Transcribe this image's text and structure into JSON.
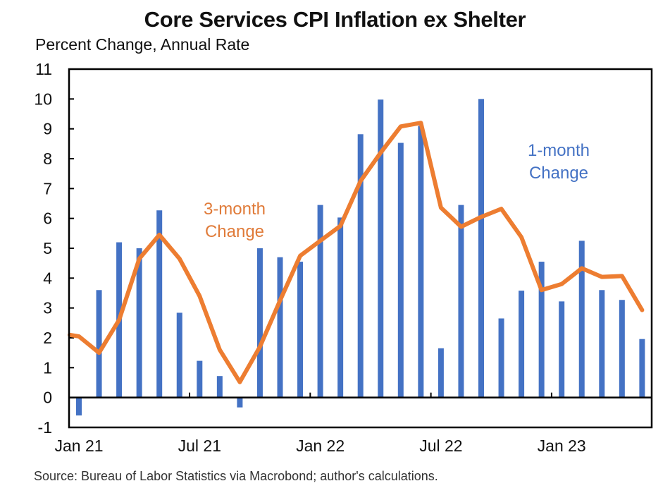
{
  "chart_data": {
    "type": "bar",
    "title": "Core Services CPI Inflation ex Shelter",
    "subtitle": "Percent Change, Annual Rate",
    "source": "Source: Bureau of Labor Statistics via Macrobond; author's calculations.",
    "xlabel": "",
    "ylabel": "Percent Change, Annual Rate",
    "ylim": [
      -1,
      11
    ],
    "yticks": [
      "-1",
      "0",
      "1",
      "2",
      "3",
      "4",
      "5",
      "6",
      "7",
      "8",
      "9",
      "10",
      "11"
    ],
    "xtick_labels": [
      {
        "month_index": 0,
        "label": "Jan 21"
      },
      {
        "month_index": 6,
        "label": "Jul 21"
      },
      {
        "month_index": 12,
        "label": "Jan 22"
      },
      {
        "month_index": 18,
        "label": "Jul 22"
      },
      {
        "month_index": 24,
        "label": "Jan 23"
      }
    ],
    "grid": false,
    "categories": [
      "Jan 21",
      "Feb 21",
      "Mar 21",
      "Apr 21",
      "May 21",
      "Jun 21",
      "Jul 21",
      "Aug 21",
      "Sep 21",
      "Oct 21",
      "Nov 21",
      "Dec 21",
      "Jan 22",
      "Feb 22",
      "Mar 22",
      "Apr 22",
      "May 22",
      "Jun 22",
      "Jul 22",
      "Aug 22",
      "Sep 22",
      "Oct 22",
      "Nov 22",
      "Dec 22",
      "Jan 23",
      "Feb 23",
      "Mar 23",
      "Apr 23",
      "May 23"
    ],
    "series": [
      {
        "name": "1-month Change",
        "type": "bar",
        "color": "#4472C4",
        "values": [
          -0.6,
          3.6,
          5.2,
          5.0,
          6.27,
          2.84,
          1.23,
          0.72,
          -0.33,
          5.0,
          4.7,
          4.55,
          6.45,
          6.03,
          8.82,
          9.98,
          8.53,
          9.1,
          1.65,
          6.45,
          10.0,
          2.65,
          3.58,
          4.55,
          3.22,
          5.25,
          3.6,
          3.27,
          1.96
        ]
      },
      {
        "name": "3-month Change",
        "type": "line",
        "color": "#ED7D31",
        "start_value": 2.1,
        "values": [
          2.05,
          1.5,
          2.6,
          4.65,
          5.45,
          4.65,
          3.4,
          1.6,
          0.52,
          1.7,
          3.25,
          4.75,
          5.25,
          5.75,
          7.25,
          8.2,
          9.08,
          9.2,
          6.36,
          5.72,
          6.05,
          6.32,
          5.37,
          3.6,
          3.8,
          4.33,
          4.04,
          4.07,
          2.93
        ]
      }
    ],
    "annotations": [
      {
        "text_lines": [
          "3-month",
          "Change"
        ],
        "color": "#E07B39",
        "series": "3-month Change"
      },
      {
        "text_lines": [
          "1-month",
          "Change"
        ],
        "color": "#4472C4",
        "series": "1-month Change"
      }
    ]
  }
}
